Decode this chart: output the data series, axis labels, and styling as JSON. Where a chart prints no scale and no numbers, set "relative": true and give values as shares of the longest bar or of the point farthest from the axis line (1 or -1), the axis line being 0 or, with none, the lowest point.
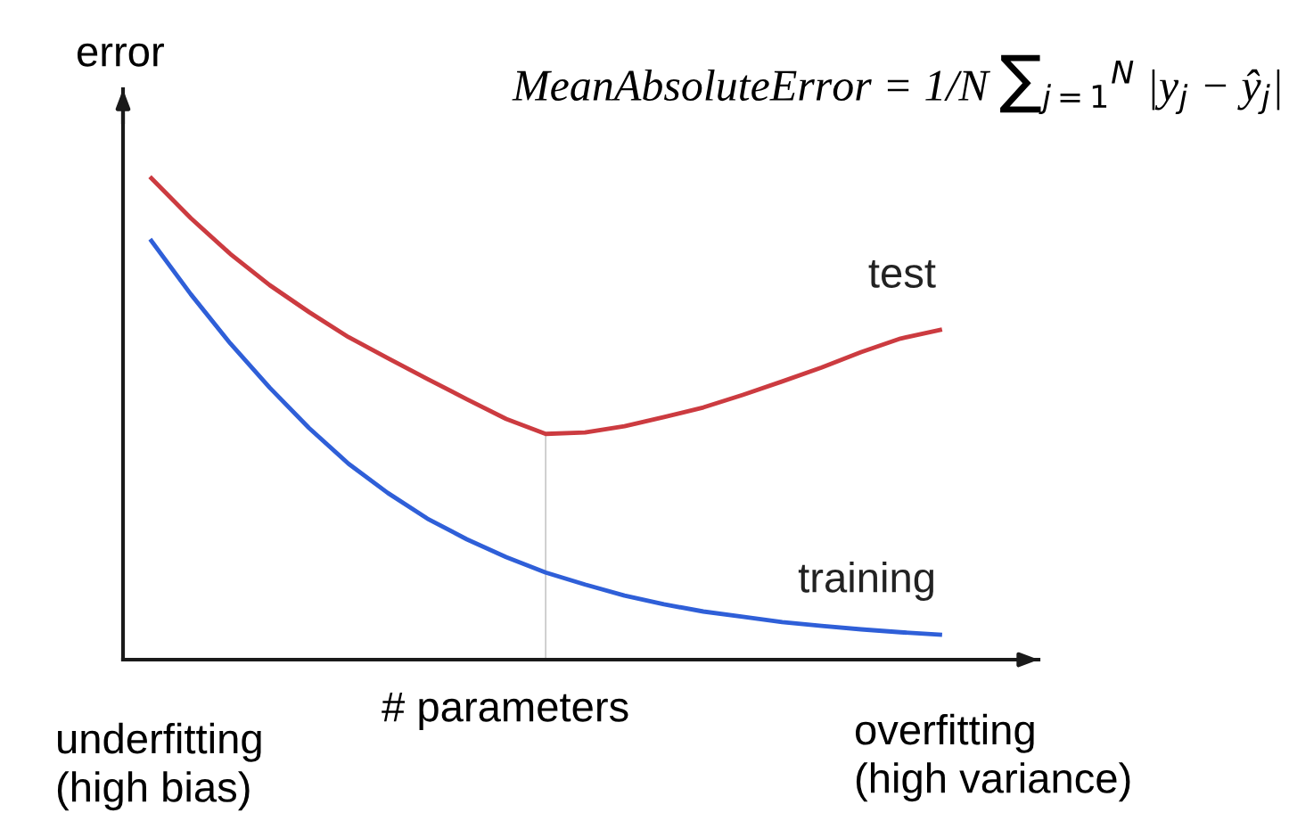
{
  "chart_data": {
    "type": "line",
    "relative": true,
    "xlabel": "# parameters",
    "ylabel": "error",
    "categories": [
      null,
      null,
      null,
      null,
      null,
      null,
      null,
      null,
      null,
      null,
      null,
      null,
      null,
      null,
      null,
      null,
      null,
      null,
      null,
      null,
      null
    ],
    "series": [
      {
        "name": "test",
        "color": "#cc3b40",
        "values": [
          1,
          0.917,
          0.843,
          0.778,
          0.722,
          0.67,
          0.626,
          0.583,
          0.541,
          0.5,
          0.469,
          0.472,
          0.485,
          0.504,
          0.524,
          0.55,
          0.578,
          0.607,
          0.639,
          0.667,
          0.685
        ]
      },
      {
        "name": "training",
        "color": "#2f5fd8",
        "values": [
          0.87,
          0.759,
          0.657,
          0.565,
          0.481,
          0.407,
          0.346,
          0.293,
          0.25,
          0.213,
          0.181,
          0.156,
          0.133,
          0.115,
          0.1,
          0.089,
          0.078,
          0.07,
          0.063,
          0.057,
          0.052
        ]
      }
    ],
    "annotations": [
      "MeanAbsoluteError = 1/N ∑$_{j=1}$$^{N}$ |y$_{j}$ − ŷ$_{j}$|",
      "underfitting\n(high bias)",
      "overfitting\n(high variance)"
    ],
    "legend": false,
    "marker": "none",
    "line_style": "solid"
  }
}
